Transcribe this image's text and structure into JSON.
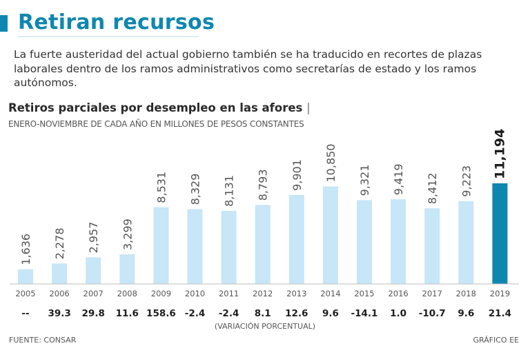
{
  "headline": "Retiran recursos",
  "lede": "La fuerte austeridad del actual gobierno también se ha traducido en recortes de plazas laborales dentro de los ramos administrativos como secretarías de estado y los ramos autónomos.",
  "source": "FUENTE: CONSAR",
  "credit": "GRÁFICO EE",
  "colors": {
    "accent": "#0e87b0",
    "bar": "#c7e6f7",
    "bar_highlight": "#0e87b0"
  },
  "chart_data": {
    "type": "bar",
    "title": "Retiros parciales por desempleo en las afores",
    "subtitle": "ENERO-NOVIEMBRE DE CADA AÑO EN MILLONES DE PESOS CONSTANTES",
    "categories": [
      "2005",
      "2006",
      "2007",
      "2008",
      "2009",
      "2010",
      "2011",
      "2012",
      "2013",
      "2014",
      "2015",
      "2016",
      "2017",
      "2018",
      "2019"
    ],
    "values": [
      1636,
      2278,
      2957,
      3299,
      8531,
      8329,
      8131,
      8793,
      9901,
      10850,
      9321,
      9419,
      8412,
      9223,
      11194
    ],
    "value_labels": [
      "1,636",
      "2,278",
      "2,957",
      "3,299",
      "8,531",
      "8,329",
      "8,131",
      "8,793",
      "9,901",
      "10,850",
      "9,321",
      "9,419",
      "8,412",
      "9,223",
      "11,194"
    ],
    "variation": [
      "--",
      "39.3",
      "29.8",
      "11.6",
      "158.6",
      "-2.4",
      "-2.4",
      "8.1",
      "12.6",
      "9.6",
      "-14.1",
      "1.0",
      "-10.7",
      "9.6",
      "21.4"
    ],
    "variation_label": "(VARIACIÓN PORCENTUAL)",
    "highlight_index": 14,
    "ylim": [
      0,
      11194
    ],
    "xlabel": "",
    "ylabel": ""
  }
}
